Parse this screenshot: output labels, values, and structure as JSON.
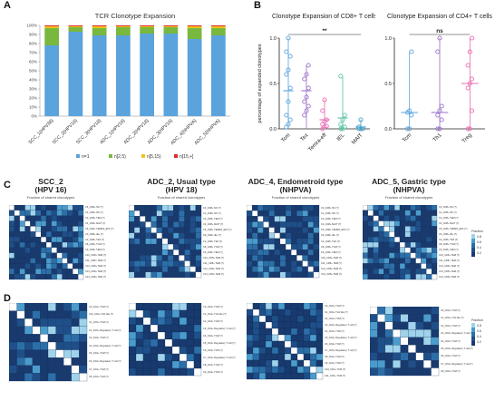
{
  "panels": {
    "A": "A",
    "B": "B",
    "C": "C",
    "D": "D"
  },
  "chart_data": [
    {
      "id": "A",
      "type": "bar",
      "stacked": true,
      "title": "TCR Clonotype Expansion",
      "xlabel": "",
      "ylabel": "",
      "ylim": [
        0,
        100
      ],
      "y_ticks": [
        "0%",
        "10%",
        "20%",
        "30%",
        "40%",
        "50%",
        "60%",
        "70%",
        "80%",
        "90%",
        "100%"
      ],
      "categories": [
        "SCC_1(HPV38)",
        "SCC_2(HPV16)",
        "SCC_3(HPV18)",
        "ADC_1(HPV16)",
        "ADC_2(HPV18)",
        "ADC_3(HPV16)",
        "ADC_4(NHPVA)",
        "ADC_5(NHPVA)"
      ],
      "series": [
        {
          "name": "n=1",
          "color": "#5aa3dd",
          "values": [
            78,
            93,
            89,
            89,
            91,
            91,
            85,
            89
          ]
        },
        {
          "name": "n[2,5)",
          "color": "#79b83e",
          "values": [
            19,
            5,
            8,
            9,
            7,
            7,
            12,
            8
          ]
        },
        {
          "name": "n[5,15)",
          "color": "#f2c21b",
          "values": [
            2,
            1,
            2,
            1,
            1,
            1,
            2,
            2
          ]
        },
        {
          "name": "n[15,+]",
          "color": "#d72c2c",
          "values": [
            1,
            1,
            1,
            1,
            1,
            1,
            1,
            1
          ]
        }
      ],
      "legend_position": "bottom"
    },
    {
      "id": "B1",
      "type": "scatter",
      "title": "Clonotype Expansion of CD8+ T cells",
      "ylabel": "percentage of expanded clonotypes",
      "ylim": [
        0,
        1.0
      ],
      "y_ticks": [
        "0.0",
        "0.5",
        "1.0"
      ],
      "categories": [
        "Tcm",
        "Tex",
        "Temra-eff",
        "IEL",
        "MAIT"
      ],
      "colors": [
        "#5aa3dd",
        "#9a6fc7",
        "#e96bb1",
        "#57c2a4",
        "#3aa0c9"
      ],
      "points": [
        [
          0.02,
          0.05,
          0.1,
          0.15,
          0.3,
          0.45,
          0.6,
          0.65,
          0.8,
          0.85,
          1.0
        ],
        [
          0.15,
          0.2,
          0.25,
          0.3,
          0.35,
          0.45,
          0.55,
          0.6,
          0.7
        ],
        [
          0.0,
          0.02,
          0.03,
          0.05,
          0.08,
          0.1,
          0.2,
          0.32
        ],
        [
          0.0,
          0.0,
          0.02,
          0.05,
          0.1,
          0.15,
          0.58
        ],
        [
          0.0,
          0.0,
          0.0,
          0.02,
          0.1
        ]
      ],
      "means": [
        0.42,
        0.42,
        0.1,
        0.12,
        0.02
      ],
      "significance": "**"
    },
    {
      "id": "B2",
      "type": "scatter",
      "title": "Clonotype Expansion of CD4+ T cells",
      "ylabel": "",
      "ylim": [
        0,
        1.0
      ],
      "y_ticks": [
        "0.0",
        "0.5",
        "1.0"
      ],
      "categories": [
        "Tcm",
        "Th1",
        "Treg"
      ],
      "colors": [
        "#5aa3dd",
        "#9a6fc7",
        "#e96bb1"
      ],
      "points": [
        [
          0.0,
          0.0,
          0.15,
          0.18,
          0.2,
          0.85
        ],
        [
          0.0,
          0.0,
          0.1,
          0.15,
          0.2,
          0.25,
          0.85,
          1.0
        ],
        [
          0.0,
          0.0,
          0.2,
          0.45,
          0.5,
          0.55,
          0.7,
          0.85,
          1.0
        ]
      ],
      "means": [
        0.18,
        0.18,
        0.5
      ],
      "significance": "ns"
    }
  ],
  "heatmaps": {
    "titles": [
      "SCC_2\n(HPV 16)",
      "ADC_2, Usual type\n(HPV 18)",
      "ADC_4, Endometroid type\n(NHPVA)",
      "ADC_5, Gastric type\n(NHPVA)"
    ],
    "row_c": {
      "subtitle": "Fraction of shared clonotypes",
      "sizes": [
        14,
        13,
        13,
        14
      ]
    },
    "row_d": {
      "sizes": [
        10,
        10,
        12,
        9
      ]
    },
    "legend": {
      "title": "Fraction",
      "ticks": [
        "0.8",
        "0.6",
        "0.4",
        "0.2"
      ]
    },
    "label_rows": {
      "C1": [
        "C6_CD8+ NK (?)",
        "C1_CD8+ NK (?)",
        "C3_CD8+ TEM (?)",
        "C4_CD8+ MAIT (?)",
        "C5_CD8+ TEMRA_EFF (?)",
        "C0_CD8+ IEL (?)",
        "C2_CD8+ TEX (?)",
        "C8_CD8+ TCM (?)",
        "C9_CD8+ TEM (?)",
        "C10_CD8+ TEM (?)",
        "C11_CD8+ TEM (?)",
        "C12_CD8+ TEM (?)",
        "C13_CD8+ TEM (?)",
        "C14_CD8+ TEM (?)"
      ],
      "C2": [
        "C0_CD8+ NK (?)",
        "C1_CD8+ NK (?)",
        "C3_CD8+ TEM (?)",
        "C4_CD8+ MAIT (?)",
        "C5_CD8+ TEMRA_EFF (?)",
        "C6_CD8+ IEL (?)",
        "C2_CD8+ TEX (?)",
        "C8_CD8+ TCM (?)",
        "C9_CD8+ TEM (?)",
        "C10_CD8+ TEM (?)",
        "C11_CD8+ TEM (?)",
        "C12_CD8+ TEM (?)",
        "C13_CD8+ TEM (?)"
      ],
      "C3": [
        "C0_CD8+ NK (?)",
        "C1_CD8+ NK (?)",
        "C3_CD8+ TEM (?)",
        "C4_CD8+ MAIT (?)",
        "C5_CD8+ TEMRA_EFF (?)",
        "C6_CD8+ IEL (?)",
        "C2_CD8+ TEX (?)",
        "C8_CD8+ TCM (?)",
        "C9_CD8+ TEM (?)",
        "C10_CD8+ TEM (?)",
        "C11_CD8+ TEM (?)",
        "C12_CD8+ TEM (?)",
        "C13_CD8+ TEM (?)"
      ],
      "C4": [
        "C0_CD8+ NK (?)",
        "C1_CD8+ NK (?)",
        "C3_CD8+ TEM (?)",
        "C4_CD8+ MAIT (?)",
        "C5_CD8+ TEMRA_EFF (?)",
        "C6_CD8+ IEL (?)",
        "C2_CD8+ TEX (?)",
        "C8_CD8+ TCM (?)",
        "C9_CD8+ TEM (?)",
        "C10_CD8+ TEM (?)",
        "C11_CD8+ TEM (?)",
        "C12_CD8+ TEM (?)",
        "C13_CD8+ TEM (?)",
        "C14_CD8+ TEM (?)"
      ],
      "D1": [
        "C0_CD4+ TCM (?)",
        "C10_CD4+ TH1 like (?)",
        "C1_CD4+ TCM (?)",
        "C2_CD4+ Regulatory T cell (?)",
        "C3_CD4+ TCM (?)",
        "C4_CD4+ Regulatory T cell (?)",
        "C5_CD4+ TCM (?)",
        "C6_CD4+ Regulatory T cell (?)",
        "C7_CD4+ TCM (?)",
        "C8_CD4+ TCM (?)"
      ],
      "D2": [
        "C0_CD4+ TCM (?)",
        "C1_CD4+ TH1 like (?)",
        "C2_CD4+ TCM (?)",
        "C3_CD4+ Regulatory T cell (?)",
        "C4_CD4+ TCM (?)",
        "C5_CD4+ Regulatory T cell (?)",
        "C6_CD4+ TCM (?)",
        "C7_CD4+ Regulatory T cell (?)",
        "C8_CD4+ TCM (?)",
        "C9_CD4+ TCM (?)"
      ],
      "D3": [
        "C0_CD4+ TCM (?)",
        "C1_CD4+ TH1 like (?)",
        "C2_CD4+ TCM (?)",
        "C3_CD4+ Regulatory T cell (?)",
        "C4_CD4+ TCM (?)",
        "C5_CD4+ Regulatory T cell (?)",
        "C6_CD4+ TCM (?)",
        "C7_CD4+ Regulatory T cell (?)",
        "C8_CD4+ TCM (?)",
        "C9_CD4+ TCM (?)",
        "C10_CD4+ TCM (?)",
        "C11_CD4+ TCM (?)"
      ],
      "D4": [
        "C0_CD4+ TCM (?)",
        "C1_CD4+ TH1 like (?)",
        "C2_CD4+ TCM (?)",
        "C3_CD4+ Regulatory T cell (?)",
        "C4_CD4+ TCM (?)",
        "C5_CD4+ Regulatory T cell (?)",
        "C6_CD4+ TCM (?)",
        "C7_CD4+ Regulatory T cell (?)",
        "C8_CD4+ TCM (?)"
      ]
    }
  }
}
